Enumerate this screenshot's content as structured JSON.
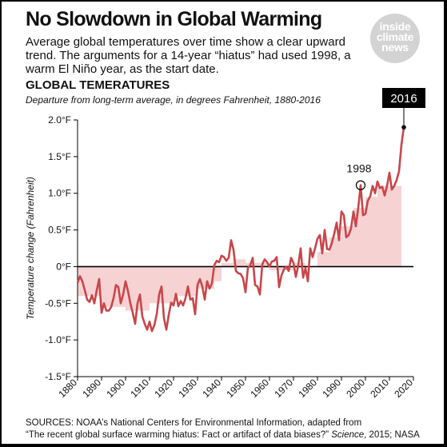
{
  "headline": "No Slowdown in Global Warming",
  "dek": "Average global temperatures over time show a clear upward trend. The arguments for a 14-year “hiatus” had used 1998, a warm El Niño year, as the start date.",
  "logo": {
    "words": [
      "inside",
      "climate",
      "news"
    ]
  },
  "sources": {
    "line1": "SOURCES: NOAA’s National Centers for Environmental Information, adapted from",
    "line2_a": "“The recent global surface warming hiatus: Fact or artifact of data biases?”",
    "line2_b": "Science",
    "line2_c": ", 2015; NASA"
  },
  "colors": {
    "line": "#c8464b",
    "bar": "#f7d2d3",
    "zero": "#000000",
    "callout": "#000000"
  },
  "chart_data": {
    "type": "line",
    "title": "GLOBAL TEMERATURES",
    "subtitle": "Departure from long-term average, in degrees Fahrenheit, 1880-2016",
    "xlabel": "",
    "ylabel": "Temperature change (Fahrenheit)",
    "xlim": [
      1880,
      2020
    ],
    "ylim": [
      -1.5,
      2.0
    ],
    "xticks": [
      "1880",
      "1890",
      "1900",
      "1910",
      "1920",
      "1930",
      "1940",
      "1950",
      "1960",
      "1970",
      "1980",
      "1990",
      "2000",
      "2010",
      "2020"
    ],
    "yticks": [
      "2.0°F",
      "1.5°F",
      "1.0°F",
      "0.5°F",
      "0°F",
      "-0.5°F",
      "-1.0°F",
      "-1.5°F"
    ],
    "grid": false,
    "series": [
      {
        "x": [
          1880,
          1881,
          1882,
          1883,
          1884,
          1885,
          1886,
          1887,
          1888,
          1889,
          1890,
          1891,
          1892,
          1893,
          1894,
          1895,
          1896,
          1897,
          1898,
          1899,
          1900,
          1901,
          1902,
          1903,
          1904,
          1905,
          1906,
          1907,
          1908,
          1909,
          1910,
          1911,
          1912,
          1913,
          1914,
          1915,
          1916,
          1917,
          1918,
          1919,
          1920,
          1921,
          1922,
          1923,
          1924,
          1925,
          1926,
          1927,
          1928,
          1929,
          1930,
          1931,
          1932,
          1933,
          1934,
          1935,
          1936,
          1937,
          1938,
          1939,
          1940,
          1941,
          1942,
          1943,
          1944,
          1945,
          1946,
          1947,
          1948,
          1949,
          1950,
          1951,
          1952,
          1953,
          1954,
          1955,
          1956,
          1957,
          1958,
          1959,
          1960,
          1961,
          1962,
          1963,
          1964,
          1965,
          1966,
          1967,
          1968,
          1969,
          1970,
          1971,
          1972,
          1973,
          1974,
          1975,
          1976,
          1977,
          1978,
          1979,
          1980,
          1981,
          1982,
          1983,
          1984,
          1985,
          1986,
          1987,
          1988,
          1989,
          1990,
          1991,
          1992,
          1993,
          1994,
          1995,
          1996,
          1997,
          1998,
          1999,
          2000,
          2001,
          2002,
          2003,
          2004,
          2005,
          2006,
          2007,
          2008,
          2009,
          2010,
          2011,
          2012,
          2013,
          2014,
          2015,
          2016
        ],
        "values": [
          -0.22,
          -0.13,
          -0.2,
          -0.32,
          -0.45,
          -0.48,
          -0.39,
          -0.5,
          -0.32,
          -0.17,
          -0.63,
          -0.5,
          -0.6,
          -0.6,
          -0.55,
          -0.43,
          -0.25,
          -0.28,
          -0.5,
          -0.38,
          -0.2,
          -0.33,
          -0.5,
          -0.63,
          -0.78,
          -0.5,
          -0.38,
          -0.68,
          -0.78,
          -0.86,
          -0.75,
          -0.88,
          -0.8,
          -0.65,
          -0.38,
          -0.27,
          -0.7,
          -0.86,
          -0.66,
          -0.49,
          -0.53,
          -0.37,
          -0.54,
          -0.47,
          -0.53,
          -0.43,
          -0.27,
          -0.45,
          -0.43,
          -0.65,
          -0.25,
          -0.17,
          -0.27,
          -0.45,
          -0.2,
          -0.3,
          -0.23,
          0.02,
          0.08,
          0.06,
          0.15,
          0.13,
          0.08,
          0.12,
          0.36,
          0.23,
          -0.06,
          -0.09,
          -0.1,
          -0.16,
          -0.35,
          -0.02,
          0.02,
          0.12,
          -0.25,
          -0.27,
          -0.38,
          0.03,
          0.1,
          0.06,
          0.0,
          0.07,
          0.08,
          0.13,
          -0.28,
          -0.12,
          -0.04,
          0.0,
          -0.06,
          0.12,
          0.05,
          -0.14,
          0.02,
          0.25,
          -0.15,
          -0.02,
          -0.2,
          0.25,
          0.13,
          0.25,
          0.38,
          0.43,
          0.18,
          0.5,
          0.24,
          0.23,
          0.32,
          0.45,
          0.6,
          0.36,
          0.75,
          0.7,
          0.4,
          0.43,
          0.52,
          0.75,
          0.55,
          0.8,
          1.11,
          0.7,
          0.72,
          0.9,
          0.96,
          1.1,
          1.0,
          1.16,
          1.07,
          1.09,
          0.97,
          1.1,
          1.28,
          1.05,
          1.1,
          1.18,
          1.3,
          1.66,
          1.9
        ]
      }
    ],
    "annotations": [
      {
        "label": "1998",
        "x": 1998,
        "y": 1.11
      },
      {
        "label": "2016",
        "x": 2016,
        "y": 1.9
      }
    ],
    "bar_groups": [
      [
        1880,
        1890,
        -0.4
      ],
      [
        1890,
        1900,
        -0.55
      ],
      [
        1900,
        1910,
        -0.6
      ],
      [
        1910,
        1920,
        -0.5
      ],
      [
        1920,
        1930,
        -0.4
      ],
      [
        1930,
        1937,
        -0.3
      ],
      [
        1937,
        1940,
        -0.2
      ],
      [
        1940,
        1945,
        0.05
      ],
      [
        1945,
        1950,
        0.1
      ],
      [
        1950,
        1960,
        0.05
      ],
      [
        1960,
        1970,
        -0.05
      ],
      [
        1970,
        1975,
        0.05
      ],
      [
        1975,
        1980,
        0.0
      ],
      [
        1980,
        1985,
        0.2
      ],
      [
        1985,
        1990,
        0.4
      ],
      [
        1990,
        1995,
        0.55
      ],
      [
        1995,
        2000,
        0.8
      ],
      [
        2000,
        2005,
        0.95
      ],
      [
        2005,
        2015,
        1.1
      ]
    ]
  }
}
